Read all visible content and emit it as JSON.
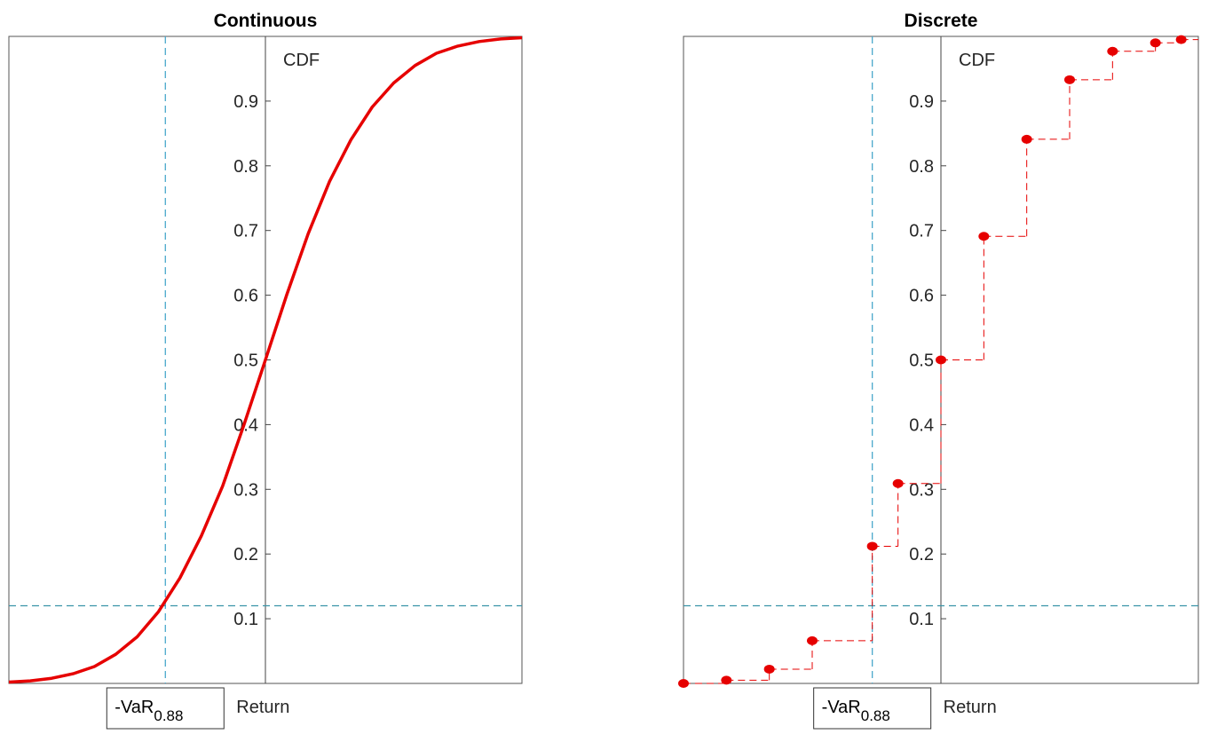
{
  "chart_data": [
    {
      "type": "line",
      "title": "Continuous",
      "ylabel": "CDF",
      "xlabel": "Return",
      "var_label": {
        "main": "-VaR",
        "sub": "0.88"
      },
      "xlim": [
        -3,
        3
      ],
      "ylim": [
        0,
        1
      ],
      "yticks": [
        0.1,
        0.2,
        0.3,
        0.4,
        0.5,
        0.6,
        0.7,
        0.8,
        0.9
      ],
      "y_tick_labels": [
        "0.1",
        "0.2",
        "0.3",
        "0.4",
        "0.5",
        "0.6",
        "0.7",
        "0.8",
        "0.9"
      ],
      "series": [
        {
          "color": "#e60000",
          "x": [
            -3.0,
            -2.75,
            -2.5,
            -2.25,
            -2.0,
            -1.75,
            -1.5,
            -1.25,
            -1.0,
            -0.75,
            -0.5,
            -0.25,
            0.0,
            0.25,
            0.5,
            0.75,
            1.0,
            1.25,
            1.5,
            1.75,
            2.0,
            2.25,
            2.5,
            2.75,
            3.0
          ],
          "y": [
            0.002,
            0.004,
            0.008,
            0.015,
            0.026,
            0.045,
            0.072,
            0.111,
            0.163,
            0.228,
            0.305,
            0.4,
            0.5,
            0.601,
            0.695,
            0.776,
            0.84,
            0.891,
            0.928,
            0.955,
            0.974,
            0.985,
            0.992,
            0.996,
            0.998
          ]
        }
      ],
      "reference_lines": {
        "var_x": -1.17,
        "alpha_y": 0.12,
        "color": "#4aa8cc"
      }
    },
    {
      "type": "scatter",
      "title": "Discrete",
      "ylabel": "CDF",
      "xlabel": "Return",
      "var_label": {
        "main": "-VaR",
        "sub": "0.88"
      },
      "xlim": [
        -3,
        3
      ],
      "ylim": [
        0,
        1
      ],
      "yticks": [
        0.1,
        0.2,
        0.3,
        0.4,
        0.5,
        0.6,
        0.7,
        0.8,
        0.9
      ],
      "y_tick_labels": [
        "0.1",
        "0.2",
        "0.3",
        "0.4",
        "0.5",
        "0.6",
        "0.7",
        "0.8",
        "0.9"
      ],
      "series": [
        {
          "color": "#e60000",
          "x": [
            -3.0,
            -2.5,
            -2.0,
            -1.5,
            -0.8,
            -0.5,
            0.0,
            0.5,
            1.0,
            1.5,
            2.0,
            2.5,
            2.8
          ],
          "y": [
            0.0,
            0.005,
            0.022,
            0.066,
            0.212,
            0.309,
            0.5,
            0.691,
            0.841,
            0.933,
            0.977,
            0.99,
            0.995
          ]
        }
      ],
      "reference_lines": {
        "var_x": -0.8,
        "alpha_y": 0.12,
        "color": "#4aa8cc"
      }
    }
  ]
}
